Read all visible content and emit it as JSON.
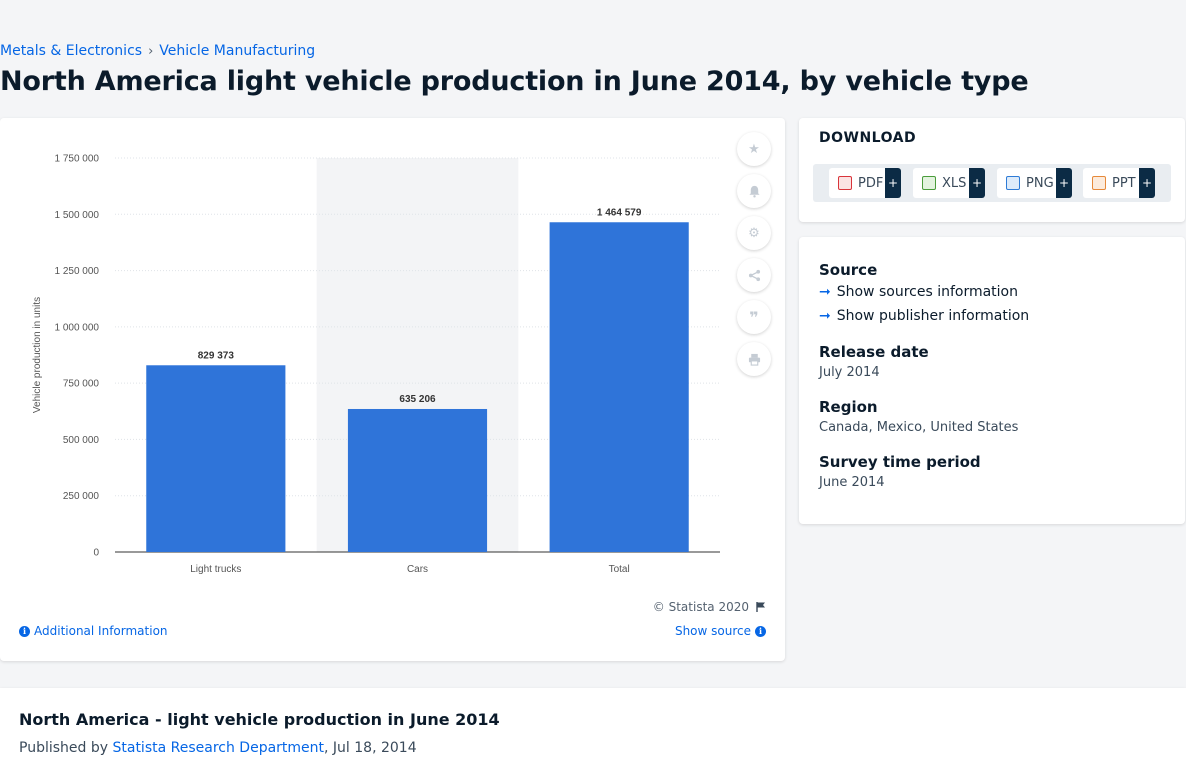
{
  "breadcrumb": {
    "items": [
      "Metals & Electronics",
      "Vehicle Manufacturing"
    ],
    "separator": "›"
  },
  "page_title": "North America light vehicle production in June 2014, by vehicle type",
  "chart_card": {
    "copyright": "© Statista 2020",
    "additional_info": "Additional Information",
    "show_source": "Show source",
    "tools": [
      "star-icon",
      "bell-icon",
      "gear-icon",
      "share-icon",
      "quote-icon",
      "print-icon"
    ]
  },
  "chart_data": {
    "type": "bar",
    "categories": [
      "Light trucks",
      "Cars",
      "Total"
    ],
    "values": [
      829373,
      635206,
      1464579
    ],
    "data_labels": [
      "829 373",
      "635 206",
      "1 464 579"
    ],
    "ylabel": "Vehicle production in units",
    "xlabel": "",
    "ylim": [
      0,
      1750000
    ],
    "yticks": [
      0,
      250000,
      500000,
      750000,
      1000000,
      1250000,
      1500000,
      1750000
    ],
    "ytick_labels": [
      "0",
      "250 000",
      "500 000",
      "750 000",
      "1 000 000",
      "1 250 000",
      "1 500 000",
      "1 750 000"
    ],
    "highlighted_category": "Cars",
    "grid": true,
    "bar_color": "#2f74d9"
  },
  "download": {
    "title": "DOWNLOAD",
    "buttons": [
      {
        "label": "PDF",
        "icon": "pdf-file-icon",
        "color": "#d9343a"
      },
      {
        "label": "XLS",
        "icon": "xls-file-icon",
        "color": "#4a9c3b"
      },
      {
        "label": "PNG",
        "icon": "png-file-icon",
        "color": "#2e7bd6"
      },
      {
        "label": "PPT",
        "icon": "ppt-file-icon",
        "color": "#e6893a"
      }
    ],
    "plus": "+"
  },
  "meta": {
    "source_heading": "Source",
    "show_sources": "Show sources information",
    "show_publisher": "Show publisher information",
    "release_heading": "Release date",
    "release_value": "July 2014",
    "region_heading": "Region",
    "region_value": "Canada, Mexico, United States",
    "survey_heading": "Survey time period",
    "survey_value": "June 2014"
  },
  "bottom": {
    "title": "North America - light vehicle production in June 2014",
    "published_prefix": "Published by ",
    "publisher": "Statista Research Department",
    "published_date": ", Jul 18, 2014"
  },
  "colors": {
    "accent": "#0666e5",
    "dark": "#0b2b45",
    "bar": "#2f74d9"
  }
}
